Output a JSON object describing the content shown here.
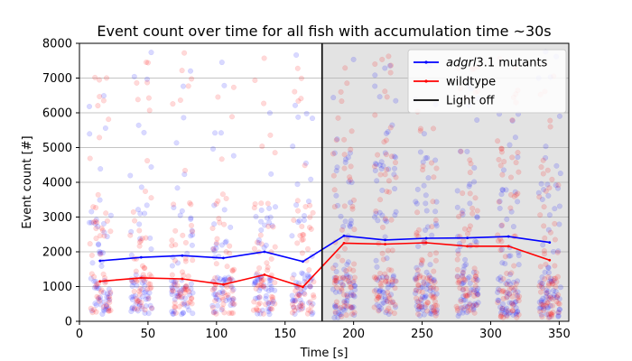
{
  "chart_data": {
    "type": "line",
    "title": "Event count over time for all fish with accumulation time ~30s",
    "xlabel": "Time [s]",
    "ylabel": "Event count [#]",
    "xlim": [
      0,
      357
    ],
    "ylim": [
      0,
      8000
    ],
    "x_ticks": [
      0,
      50,
      100,
      150,
      200,
      250,
      300,
      350
    ],
    "y_ticks": [
      0,
      1000,
      2000,
      3000,
      4000,
      5000,
      6000,
      7000,
      8000
    ],
    "grid": "horizontal",
    "shaded_region": {
      "from": 177,
      "to": 357,
      "color": "#e3e3e3"
    },
    "vline": {
      "x": 177,
      "label": "Light off",
      "color": "#000000"
    },
    "legend_placement": "top-right",
    "series": [
      {
        "name_italic": "adgrl",
        "name_rest": "3.1 mutants",
        "color": "#0000ff",
        "x": [
          15,
          45,
          75,
          105,
          135,
          163,
          193,
          223,
          253,
          283,
          313,
          343
        ],
        "y": [
          1740,
          1840,
          1890,
          1820,
          2000,
          1720,
          2460,
          2340,
          2390,
          2400,
          2440,
          2270
        ]
      },
      {
        "name": "wildtype",
        "color": "#ff0000",
        "x": [
          15,
          45,
          75,
          105,
          135,
          163,
          193,
          223,
          253,
          283,
          313,
          343
        ],
        "y": [
          1150,
          1250,
          1220,
          1060,
          1340,
          990,
          2250,
          2220,
          2260,
          2160,
          2160,
          1760
        ]
      }
    ],
    "scatter_clusters": {
      "centers": [
        15,
        45,
        75,
        105,
        135,
        163,
        193,
        223,
        253,
        283,
        313,
        343
      ],
      "spread": 8,
      "alpha": 0.15
    }
  }
}
